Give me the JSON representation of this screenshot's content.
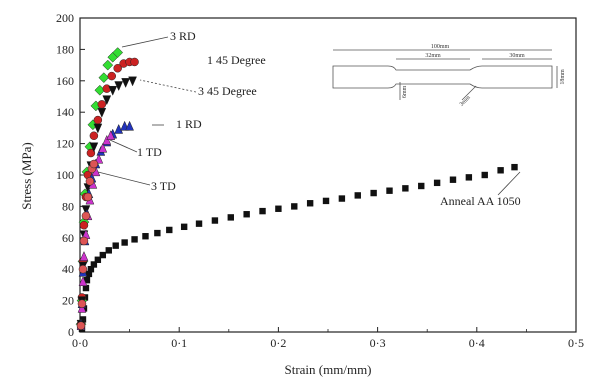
{
  "chart_data": {
    "type": "scatter",
    "xlabel": "Strain (mm/mm)",
    "ylabel": "Stress (MPa)",
    "xlim": [
      0.0,
      0.5
    ],
    "ylim": [
      0,
      200
    ],
    "xticks": [
      0.0,
      0.1,
      0.2,
      0.3,
      0.4,
      0.5
    ],
    "xtick_labels": [
      "0·0",
      "0·1",
      "0·2",
      "0·3",
      "0·4",
      "0·5"
    ],
    "yticks": [
      0,
      20,
      40,
      60,
      80,
      100,
      120,
      140,
      160,
      180,
      200
    ],
    "ytick_labels": [
      "0",
      "20",
      "40",
      "60",
      "80",
      "100",
      "120",
      "140",
      "160",
      "180",
      "200"
    ],
    "grid": false,
    "series": [
      {
        "name": "Anneal AA 1050",
        "marker": "square",
        "color": "#111111",
        "points": [
          [
            0.002,
            2
          ],
          [
            0.003,
            8
          ],
          [
            0.004,
            15
          ],
          [
            0.005,
            22
          ],
          [
            0.006,
            28
          ],
          [
            0.007,
            33
          ],
          [
            0.009,
            37
          ],
          [
            0.011,
            40
          ],
          [
            0.014,
            43
          ],
          [
            0.018,
            46
          ],
          [
            0.023,
            49
          ],
          [
            0.029,
            52
          ],
          [
            0.036,
            55
          ],
          [
            0.045,
            57
          ],
          [
            0.055,
            59
          ],
          [
            0.066,
            61
          ],
          [
            0.078,
            63
          ],
          [
            0.09,
            65
          ],
          [
            0.105,
            67
          ],
          [
            0.12,
            69
          ],
          [
            0.136,
            71
          ],
          [
            0.152,
            73
          ],
          [
            0.168,
            75
          ],
          [
            0.184,
            77
          ],
          [
            0.2,
            78.5
          ],
          [
            0.216,
            80
          ],
          [
            0.232,
            82
          ],
          [
            0.248,
            83.5
          ],
          [
            0.264,
            85
          ],
          [
            0.28,
            87
          ],
          [
            0.296,
            88.5
          ],
          [
            0.312,
            90
          ],
          [
            0.328,
            91.5
          ],
          [
            0.344,
            93
          ],
          [
            0.36,
            95
          ],
          [
            0.376,
            97
          ],
          [
            0.392,
            98.5
          ],
          [
            0.408,
            100
          ],
          [
            0.424,
            103
          ],
          [
            0.438,
            105
          ]
        ]
      },
      {
        "name": "3 RD",
        "marker": "diamond",
        "color": "#33dd33",
        "points": [
          [
            0.001,
            5
          ],
          [
            0.002,
            20
          ],
          [
            0.003,
            45
          ],
          [
            0.004,
            70
          ],
          [
            0.005,
            88
          ],
          [
            0.007,
            102
          ],
          [
            0.01,
            118
          ],
          [
            0.013,
            132
          ],
          [
            0.016,
            144
          ],
          [
            0.02,
            154
          ],
          [
            0.024,
            162
          ],
          [
            0.028,
            170
          ],
          [
            0.033,
            175
          ],
          [
            0.038,
            178
          ]
        ]
      },
      {
        "name": "1 45 Degree",
        "marker": "circle",
        "color": "#cc2222",
        "points": [
          [
            0.001,
            5
          ],
          [
            0.002,
            22
          ],
          [
            0.003,
            45
          ],
          [
            0.004,
            68
          ],
          [
            0.006,
            86
          ],
          [
            0.008,
            100
          ],
          [
            0.011,
            114
          ],
          [
            0.014,
            125
          ],
          [
            0.018,
            135
          ],
          [
            0.022,
            145
          ],
          [
            0.027,
            155
          ],
          [
            0.032,
            163
          ],
          [
            0.038,
            168
          ],
          [
            0.044,
            171
          ],
          [
            0.05,
            172
          ],
          [
            0.055,
            172
          ]
        ]
      },
      {
        "name": "3 45 Degree",
        "marker": "triangle-down",
        "color": "#111111",
        "points": [
          [
            0.001,
            5
          ],
          [
            0.002,
            20
          ],
          [
            0.003,
            42
          ],
          [
            0.004,
            62
          ],
          [
            0.006,
            78
          ],
          [
            0.008,
            92
          ],
          [
            0.011,
            106
          ],
          [
            0.014,
            118
          ],
          [
            0.018,
            130
          ],
          [
            0.022,
            140
          ],
          [
            0.027,
            148
          ],
          [
            0.033,
            154
          ],
          [
            0.039,
            157
          ],
          [
            0.046,
            159
          ],
          [
            0.053,
            160
          ]
        ]
      },
      {
        "name": "1 RD",
        "marker": "triangle-up",
        "color": "#2233bb",
        "points": [
          [
            0.001,
            5
          ],
          [
            0.002,
            18
          ],
          [
            0.003,
            38
          ],
          [
            0.005,
            58
          ],
          [
            0.007,
            75
          ],
          [
            0.009,
            88
          ],
          [
            0.012,
            98
          ],
          [
            0.016,
            107
          ],
          [
            0.021,
            115
          ],
          [
            0.027,
            121
          ],
          [
            0.033,
            126
          ],
          [
            0.039,
            129
          ],
          [
            0.045,
            131
          ],
          [
            0.05,
            131
          ]
        ]
      },
      {
        "name": "1 TD",
        "marker": "triangle-up",
        "color": "#cc33cc",
        "points": [
          [
            0.001,
            4
          ],
          [
            0.002,
            15
          ],
          [
            0.003,
            32
          ],
          [
            0.004,
            48
          ],
          [
            0.006,
            62
          ],
          [
            0.008,
            74
          ],
          [
            0.01,
            84
          ],
          [
            0.013,
            94
          ],
          [
            0.016,
            102
          ],
          [
            0.019,
            110
          ],
          [
            0.023,
            117
          ],
          [
            0.027,
            122
          ],
          [
            0.031,
            125
          ]
        ]
      },
      {
        "name": "3 TD",
        "marker": "circle",
        "color": "#dd5555",
        "points": [
          [
            0.001,
            4
          ],
          [
            0.002,
            18
          ],
          [
            0.003,
            40
          ],
          [
            0.004,
            58
          ],
          [
            0.006,
            74
          ],
          [
            0.008,
            86
          ],
          [
            0.01,
            96
          ],
          [
            0.012,
            104
          ],
          [
            0.014,
            107
          ]
        ]
      }
    ],
    "annotations": [
      {
        "text": "3 RD"
      },
      {
        "text": "1 45 Degree"
      },
      {
        "text": "3 45 Degree"
      },
      {
        "text": "1 RD"
      },
      {
        "text": "1 TD"
      },
      {
        "text": "3 TD"
      },
      {
        "text": "Anneal AA 1050"
      }
    ]
  },
  "specimen_inset": {
    "dims": [
      "100mm",
      "32mm",
      "30mm",
      "18mm",
      "6mm",
      "3mm"
    ]
  }
}
